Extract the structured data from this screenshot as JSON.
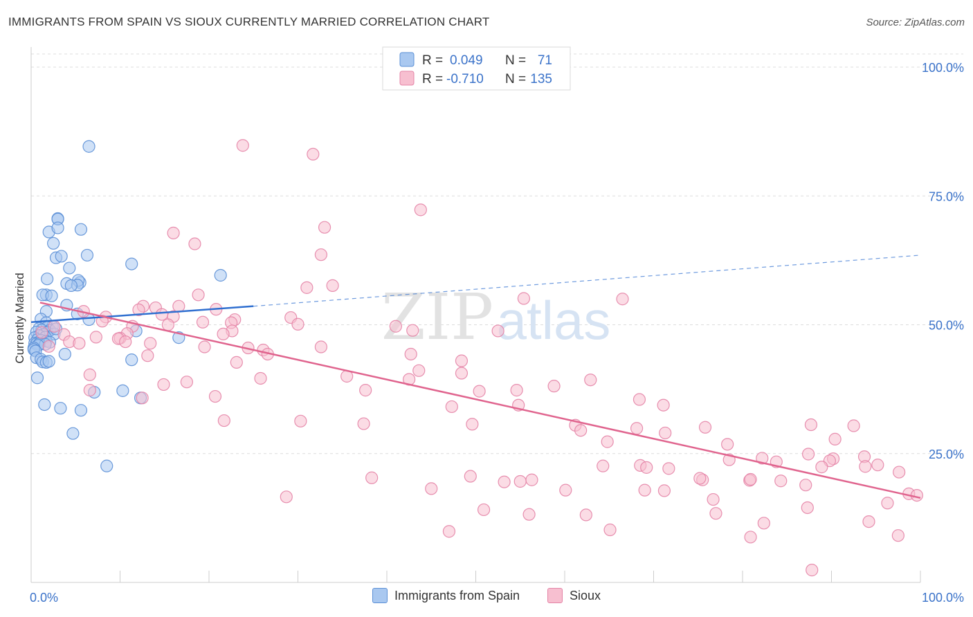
{
  "title": "IMMIGRANTS FROM SPAIN VS SIOUX CURRENTLY MARRIED CORRELATION CHART",
  "source": "Source: ZipAtlas.com",
  "watermark": {
    "zip": "ZIP",
    "atlas": "atlas"
  },
  "colors": {
    "blue_fill": "#a9c8f0",
    "blue_stroke": "#5b8fd6",
    "blue_line": "#2f6fd0",
    "pink_fill": "#f7bfd0",
    "pink_stroke": "#e483a6",
    "pink_line": "#e0648e",
    "value_text": "#3a72c9",
    "grid": "#dcdcdc"
  },
  "chart_data": {
    "type": "scatter",
    "xlabel": "",
    "ylabel": "Currently Married",
    "xlim": [
      0,
      100
    ],
    "ylim": [
      0,
      100
    ],
    "x_tick_labels": [
      "0.0%",
      "100.0%"
    ],
    "y_tick_labels": [
      "25.0%",
      "50.0%",
      "75.0%",
      "100.0%"
    ],
    "y_ticks": [
      25,
      50,
      75,
      100
    ],
    "legend_top": [
      {
        "r_label": "R =",
        "r_value": "0.049",
        "n_label": "N =",
        "n_value": "71"
      },
      {
        "r_label": "R =",
        "r_value": "-0.710",
        "n_label": "N =",
        "n_value": "135"
      }
    ],
    "series": [
      {
        "name": "Immigrants from Spain",
        "color": "#a9c8f0",
        "trend": {
          "x0": 0,
          "y0": 50.5,
          "x1": 25,
          "y1": 53.6,
          "dash_x1": 100,
          "dash_y1": 63.5
        },
        "points": [
          [
            6.5,
            84.6
          ],
          [
            3,
            70.6
          ],
          [
            3,
            70.5
          ],
          [
            5.6,
            68.5
          ],
          [
            2,
            68
          ],
          [
            3,
            68.8
          ],
          [
            2.5,
            65.8
          ],
          [
            2.8,
            63
          ],
          [
            3.4,
            63.3
          ],
          [
            6.3,
            63.5
          ],
          [
            11.3,
            61.8
          ],
          [
            4.3,
            61
          ],
          [
            21.3,
            59.6
          ],
          [
            1.8,
            58.9
          ],
          [
            4,
            58
          ],
          [
            5.5,
            58.2
          ],
          [
            5.3,
            58.6
          ],
          [
            5.2,
            57.7
          ],
          [
            4.5,
            57.6
          ],
          [
            1.7,
            55.8
          ],
          [
            1.3,
            55.8
          ],
          [
            2.3,
            55.6
          ],
          [
            4,
            53.8
          ],
          [
            1.7,
            52.6
          ],
          [
            5.2,
            52.1
          ],
          [
            6.5,
            51
          ],
          [
            1.1,
            51.1
          ],
          [
            1.7,
            50.4
          ],
          [
            2.4,
            49.7
          ],
          [
            1.8,
            49.5
          ],
          [
            0.9,
            49.3
          ],
          [
            1.2,
            49
          ],
          [
            2.1,
            48.9
          ],
          [
            11.8,
            48.8
          ],
          [
            0.6,
            48.6
          ],
          [
            1.8,
            48.5
          ],
          [
            1.4,
            48.1
          ],
          [
            2.6,
            48.2
          ],
          [
            0.9,
            47.9
          ],
          [
            1.6,
            47.6
          ],
          [
            0.4,
            47.5
          ],
          [
            0.7,
            47.1
          ],
          [
            1.1,
            47
          ],
          [
            16.6,
            47.5
          ],
          [
            1.7,
            46.8
          ],
          [
            2.1,
            46.6
          ],
          [
            0.4,
            46.4
          ],
          [
            0.6,
            46.3
          ],
          [
            0.9,
            46.3
          ],
          [
            1.6,
            46.2
          ],
          [
            0.8,
            46
          ],
          [
            0.3,
            45.5
          ],
          [
            0.3,
            45.2
          ],
          [
            0.5,
            44.9
          ],
          [
            3.8,
            44.3
          ],
          [
            0.6,
            43.6
          ],
          [
            1.1,
            43.3
          ],
          [
            11.3,
            43.2
          ],
          [
            1.3,
            42.8
          ],
          [
            1.7,
            42.7
          ],
          [
            2,
            42.9
          ],
          [
            0.7,
            39.7
          ],
          [
            7.1,
            36.9
          ],
          [
            10.3,
            37.2
          ],
          [
            12.3,
            35.8
          ],
          [
            1.5,
            34.5
          ],
          [
            3.3,
            33.8
          ],
          [
            5.6,
            33.4
          ],
          [
            4.7,
            28.9
          ],
          [
            8.5,
            22.6
          ],
          [
            2.8,
            49.2
          ]
        ]
      },
      {
        "name": "Sioux",
        "color": "#f7bfd0",
        "trend": {
          "x0": 1,
          "y0": 54.3,
          "x1": 100,
          "y1": 16.4
        },
        "points": [
          [
            23.8,
            84.8
          ],
          [
            31.7,
            83.1
          ],
          [
            43.8,
            72.3
          ],
          [
            16,
            67.8
          ],
          [
            18.4,
            65.7
          ],
          [
            33,
            68.9
          ],
          [
            32.6,
            63.6
          ],
          [
            33.9,
            57.6
          ],
          [
            31,
            57.2
          ],
          [
            18.8,
            55.8
          ],
          [
            55.4,
            55.1
          ],
          [
            66.5,
            55
          ],
          [
            12.6,
            53.6
          ],
          [
            14,
            53.3
          ],
          [
            16.6,
            53.6
          ],
          [
            5.9,
            52.6
          ],
          [
            20.8,
            53
          ],
          [
            12.1,
            52.9
          ],
          [
            14.7,
            52
          ],
          [
            8.4,
            51.5
          ],
          [
            16,
            51.6
          ],
          [
            29.2,
            51.4
          ],
          [
            30,
            50.1
          ],
          [
            8,
            50.7
          ],
          [
            22.9,
            51
          ],
          [
            19.3,
            50.5
          ],
          [
            15.4,
            50
          ],
          [
            22.5,
            50.4
          ],
          [
            41,
            49.7
          ],
          [
            2.6,
            49.7
          ],
          [
            11.4,
            49.7
          ],
          [
            22.6,
            48.8
          ],
          [
            42.9,
            48.9
          ],
          [
            52.5,
            48.8
          ],
          [
            3.7,
            48.1
          ],
          [
            10.8,
            48.3
          ],
          [
            1.2,
            48.5
          ],
          [
            21.6,
            48.2
          ],
          [
            10,
            47.4
          ],
          [
            7.3,
            47.6
          ],
          [
            9.8,
            47.3
          ],
          [
            4.3,
            46.7
          ],
          [
            5.4,
            46.4
          ],
          [
            13.4,
            46.4
          ],
          [
            10.6,
            46.7
          ],
          [
            19.5,
            45.7
          ],
          [
            24.4,
            45.5
          ],
          [
            2,
            45.8
          ],
          [
            26.1,
            45.1
          ],
          [
            32.6,
            45.7
          ],
          [
            26.6,
            44.3
          ],
          [
            42.7,
            44.3
          ],
          [
            13.1,
            44
          ],
          [
            23.1,
            42.7
          ],
          [
            48.4,
            43
          ],
          [
            43.6,
            41.1
          ],
          [
            35.5,
            40
          ],
          [
            48.4,
            40.6
          ],
          [
            25.8,
            39.6
          ],
          [
            6.6,
            40.3
          ],
          [
            42.5,
            39.4
          ],
          [
            17.5,
            38.9
          ],
          [
            62.9,
            39.3
          ],
          [
            37.6,
            37.3
          ],
          [
            14.9,
            38.4
          ],
          [
            58.8,
            38.1
          ],
          [
            54.6,
            37.3
          ],
          [
            50.4,
            37.1
          ],
          [
            6.6,
            37.3
          ],
          [
            20.7,
            36.1
          ],
          [
            12.5,
            35.8
          ],
          [
            68.4,
            35.5
          ],
          [
            71.1,
            34.4
          ],
          [
            47.3,
            34.1
          ],
          [
            54.8,
            34.4
          ],
          [
            21.7,
            31.4
          ],
          [
            30.3,
            31.3
          ],
          [
            37.4,
            30.8
          ],
          [
            49.6,
            30.7
          ],
          [
            61.2,
            30.5
          ],
          [
            68.1,
            29.9
          ],
          [
            75.8,
            30.1
          ],
          [
            87.7,
            30.6
          ],
          [
            92.5,
            30.4
          ],
          [
            61.8,
            29.5
          ],
          [
            71.3,
            29
          ],
          [
            64.8,
            27.3
          ],
          [
            90.4,
            27.8
          ],
          [
            78.3,
            26.8
          ],
          [
            93.7,
            24.4
          ],
          [
            87.4,
            24.9
          ],
          [
            82.2,
            24.1
          ],
          [
            90.2,
            24
          ],
          [
            89.8,
            23.6
          ],
          [
            78.5,
            23.8
          ],
          [
            83.8,
            23.4
          ],
          [
            68.5,
            22.7
          ],
          [
            71.7,
            22.1
          ],
          [
            97.6,
            21.4
          ],
          [
            95.2,
            22.8
          ],
          [
            93.8,
            22.5
          ],
          [
            88.9,
            22.4
          ],
          [
            64.3,
            22.6
          ],
          [
            69.2,
            22.3
          ],
          [
            38.3,
            20.3
          ],
          [
            49.4,
            20.6
          ],
          [
            55,
            19.6
          ],
          [
            53.2,
            19.5
          ],
          [
            56.3,
            19.9
          ],
          [
            75.5,
            19.9
          ],
          [
            80.8,
            19.8
          ],
          [
            84.3,
            19.7
          ],
          [
            87.1,
            18.9
          ],
          [
            80.9,
            20
          ],
          [
            75.2,
            20.2
          ],
          [
            45,
            18.2
          ],
          [
            60.1,
            17.9
          ],
          [
            69,
            17.9
          ],
          [
            71.2,
            17.8
          ],
          [
            98.7,
            17.2
          ],
          [
            99.6,
            16.9
          ],
          [
            28.7,
            16.6
          ],
          [
            76.7,
            16.1
          ],
          [
            96.3,
            15.4
          ],
          [
            87.3,
            14.5
          ],
          [
            50.9,
            14.1
          ],
          [
            56,
            13.2
          ],
          [
            77,
            13.4
          ],
          [
            62.4,
            13.1
          ],
          [
            94.2,
            11.8
          ],
          [
            82.4,
            11.5
          ],
          [
            47,
            9.9
          ],
          [
            65.1,
            10.2
          ],
          [
            80.9,
            8.8
          ],
          [
            97.5,
            9.1
          ],
          [
            87.8,
            2.4
          ]
        ]
      }
    ]
  }
}
